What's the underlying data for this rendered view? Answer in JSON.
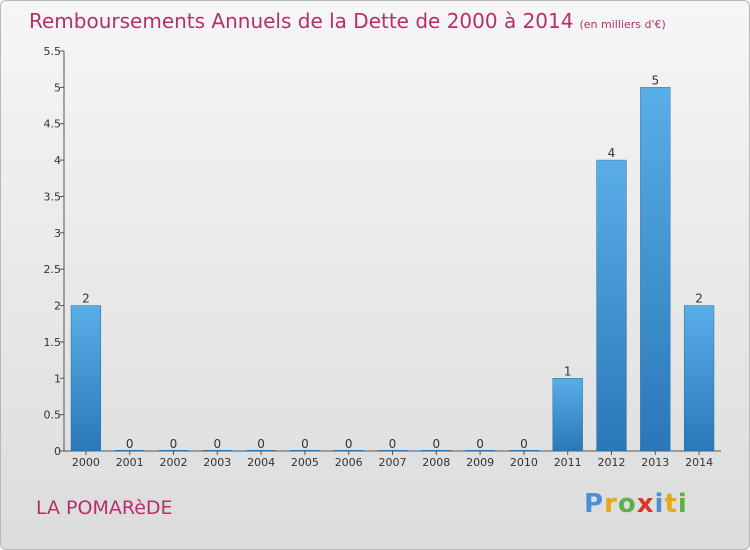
{
  "header": {
    "title": "Remboursements Annuels de la Dette de 2000 à 2014",
    "subtitle": "(en milliers d'€)"
  },
  "footer": {
    "commune": "LA POMARèDE",
    "logo": {
      "letters": [
        "P",
        "r",
        "o",
        "x",
        "i",
        "t",
        "i"
      ]
    }
  },
  "colors": {
    "title": "#b5306a",
    "bar_top": "#5aaee8",
    "bar_bottom": "#2a77b8"
  },
  "chart_data": {
    "type": "bar",
    "categories": [
      "2000",
      "2001",
      "2002",
      "2003",
      "2004",
      "2005",
      "2006",
      "2007",
      "2008",
      "2009",
      "2010",
      "2011",
      "2012",
      "2013",
      "2014"
    ],
    "values": [
      2,
      0,
      0,
      0,
      0,
      0,
      0,
      0,
      0,
      0,
      0,
      1,
      4,
      5,
      2
    ],
    "data_labels": [
      "2",
      "0",
      "0",
      "0",
      "0",
      "0",
      "0",
      "0",
      "0",
      "0",
      "0",
      "1",
      "4",
      "5",
      "2"
    ],
    "title": "Remboursements Annuels de la Dette de 2000 à 2014",
    "xlabel": "",
    "ylabel": "",
    "ylim": [
      0,
      5.5
    ],
    "yticks": [
      0,
      0.5,
      1,
      1.5,
      2,
      2.5,
      3,
      3.5,
      4,
      4.5,
      5,
      5.5
    ],
    "ytick_labels": [
      "0",
      "0.5",
      "1",
      "1.5",
      "2",
      "2.5",
      "3",
      "3.5",
      "4",
      "4.5",
      "5",
      "5.5"
    ],
    "grid": false,
    "legend": "none"
  }
}
